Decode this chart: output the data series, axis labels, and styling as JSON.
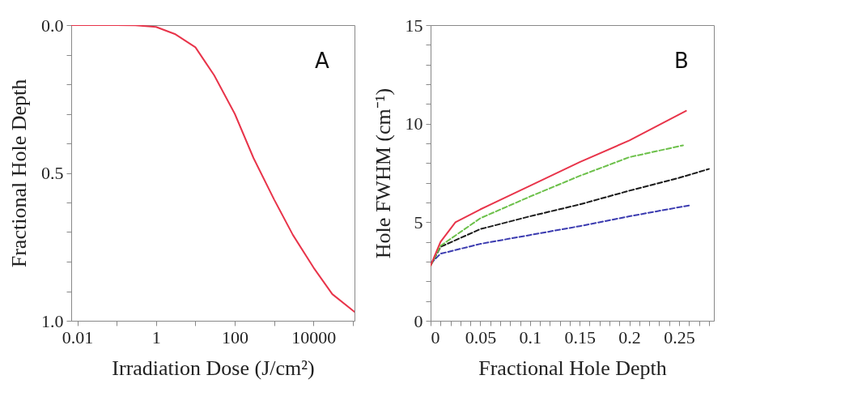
{
  "chart_data": [
    {
      "type": "line",
      "xlabel": "Irradiation Dose (J/cm²)",
      "ylabel": "Fractional Hole Depth",
      "annotations": [
        "A"
      ],
      "log": "x",
      "xlim": [
        0.007,
        110000
      ],
      "xticks": [
        0.01,
        {
          "value": 0.1,
          "label": null
        },
        1,
        {
          "value": 10,
          "label": null
        },
        100,
        {
          "value": 1000,
          "label": null
        },
        10000,
        {
          "value": 100000,
          "label": null
        }
      ],
      "ylim": [
        1.0,
        0.0
      ],
      "yticks": [
        {
          "value": 0,
          "label": "0.0"
        },
        {
          "value": 0.1,
          "label": null
        },
        {
          "value": 0.2,
          "label": null
        },
        {
          "value": 0.3,
          "label": null
        },
        {
          "value": 0.4,
          "label": null
        },
        0.5,
        {
          "value": 0.6,
          "label": null
        },
        {
          "value": 0.7,
          "label": null
        },
        {
          "value": 0.8,
          "label": null
        },
        {
          "value": 0.9,
          "label": null
        },
        {
          "value": 1,
          "label": "1.0"
        }
      ],
      "x": [
        0.007,
        0.1,
        0.3,
        1,
        3,
        10,
        30,
        100,
        300,
        1000,
        3000,
        10000,
        30000,
        110000
      ],
      "series": [
        {
          "color": "#e8344a",
          "values": [
            0,
            0,
            0.001,
            0.006,
            0.03,
            0.075,
            0.17,
            0.3,
            0.45,
            0.59,
            0.71,
            0.82,
            0.91,
            0.97
          ]
        }
      ]
    },
    {
      "type": "line",
      "xlabel": "Fractional Hole Depth",
      "ylabel": "Hole FWHM (cm⁻¹)",
      "annotations": [
        "B"
      ],
      "xlim": [
        0,
        0.285
      ],
      "xticks": [
        0,
        {
          "value": 0.01,
          "label": null
        },
        {
          "value": 0.02,
          "label": null
        },
        {
          "value": 0.03,
          "label": null
        },
        {
          "value": 0.04,
          "label": null
        },
        0.05,
        {
          "value": 0.06,
          "label": null
        },
        {
          "value": 0.07,
          "label": null
        },
        {
          "value": 0.08,
          "label": null
        },
        {
          "value": 0.09,
          "label": null
        },
        0.1,
        {
          "value": 0.11,
          "label": null
        },
        {
          "value": 0.12,
          "label": null
        },
        {
          "value": 0.13,
          "label": null
        },
        {
          "value": 0.14,
          "label": null
        },
        0.15,
        {
          "value": 0.16,
          "label": null
        },
        {
          "value": 0.17,
          "label": null
        },
        {
          "value": 0.18,
          "label": null
        },
        {
          "value": 0.19,
          "label": null
        },
        0.2,
        {
          "value": 0.21,
          "label": null
        },
        {
          "value": 0.22,
          "label": null
        },
        {
          "value": 0.23,
          "label": null
        },
        {
          "value": 0.24,
          "label": null
        },
        0.25,
        {
          "value": 0.26,
          "label": null
        },
        {
          "value": 0.27,
          "label": null
        },
        {
          "value": 0.28,
          "label": null
        }
      ],
      "ylim": [
        0,
        15
      ],
      "yticks": [
        0,
        {
          "value": 1,
          "label": null
        },
        {
          "value": 2,
          "label": null
        },
        {
          "value": 3,
          "label": null
        },
        {
          "value": 4,
          "label": null
        },
        5,
        {
          "value": 6,
          "label": null
        },
        {
          "value": 7,
          "label": null
        },
        {
          "value": 8,
          "label": null
        },
        {
          "value": 9,
          "label": null
        },
        10,
        {
          "value": 11,
          "label": null
        },
        {
          "value": 12,
          "label": null
        },
        {
          "value": 13,
          "label": null
        },
        {
          "value": 14,
          "label": null
        },
        15
      ],
      "series": [
        {
          "color": "#3b3bb0",
          "line_style": "dashed",
          "x": [
            0,
            0.01,
            0.05,
            0.1,
            0.15,
            0.2,
            0.26
          ],
          "values": [
            2.9,
            3.4,
            3.9,
            4.35,
            4.8,
            5.3,
            5.85
          ]
        },
        {
          "color": "#1a1a1a",
          "line_style": "dashed",
          "x": [
            0,
            0.01,
            0.05,
            0.1,
            0.15,
            0.2,
            0.25,
            0.28
          ],
          "values": [
            2.8,
            3.75,
            4.65,
            5.3,
            5.9,
            6.6,
            7.25,
            7.7
          ]
        },
        {
          "color": "#6cc04a",
          "line_style": "dashed",
          "x": [
            0,
            0.01,
            0.05,
            0.1,
            0.15,
            0.2,
            0.254
          ],
          "values": [
            2.8,
            3.8,
            5.2,
            6.3,
            7.35,
            8.3,
            8.9
          ]
        },
        {
          "color": "#e8344a",
          "line_style": "solid",
          "x": [
            0,
            0.01,
            0.025,
            0.05,
            0.1,
            0.15,
            0.2,
            0.257
          ],
          "values": [
            2.8,
            4.0,
            5.0,
            5.65,
            6.85,
            8.05,
            9.15,
            10.65
          ]
        }
      ]
    }
  ]
}
